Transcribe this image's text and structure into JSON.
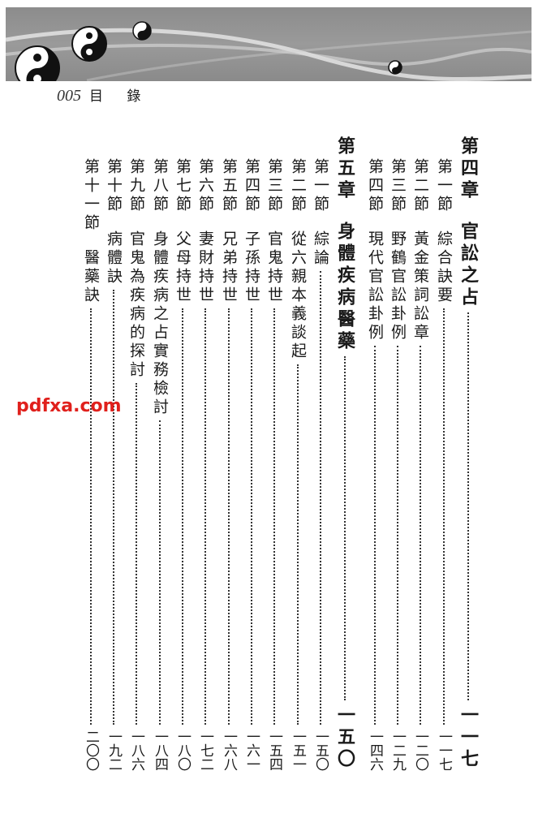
{
  "header": {
    "page_number": "005",
    "title": "目 錄"
  },
  "watermark": "pdfxa.com",
  "entries": [
    {
      "type": "chapter",
      "label": "第四章",
      "title": "官訟之占",
      "page": "一一七"
    },
    {
      "type": "section",
      "label": "第一節",
      "title": "綜合訣要",
      "page": "一一七"
    },
    {
      "type": "section",
      "label": "第二節",
      "title": "黃金策詞訟章",
      "page": "一二〇"
    },
    {
      "type": "section",
      "label": "第三節",
      "title": "野鶴官訟卦例",
      "page": "一二九"
    },
    {
      "type": "section",
      "label": "第四節",
      "title": "現代官訟卦例",
      "page": "一四六"
    },
    {
      "type": "chapter",
      "label": "第五章",
      "title": "身體疾病醫藥",
      "page": "一五〇"
    },
    {
      "type": "section",
      "label": "第一節",
      "title": "綜論",
      "page": "一五〇"
    },
    {
      "type": "section",
      "label": "第二節",
      "title": "從六親本義談起",
      "page": "一五一"
    },
    {
      "type": "section",
      "label": "第三節",
      "title": "官鬼持世",
      "page": "一五四"
    },
    {
      "type": "section",
      "label": "第四節",
      "title": "子孫持世",
      "page": "一六一"
    },
    {
      "type": "section",
      "label": "第五節",
      "title": "兄弟持世",
      "page": "一六八"
    },
    {
      "type": "section",
      "label": "第六節",
      "title": "妻財持世",
      "page": "一七二"
    },
    {
      "type": "section",
      "label": "第七節",
      "title": "父母持世",
      "page": "一八〇"
    },
    {
      "type": "section",
      "label": "第八節",
      "title": "身體疾病之占實務檢討",
      "page": "一八四"
    },
    {
      "type": "section",
      "label": "第九節",
      "title": "官鬼為疾病的探討",
      "page": "一八六"
    },
    {
      "type": "section",
      "label": "第十節",
      "title": "病體訣",
      "page": "一九二"
    },
    {
      "type": "section",
      "label": "第十一節",
      "title": "醫藥訣",
      "page": "二〇〇"
    }
  ]
}
